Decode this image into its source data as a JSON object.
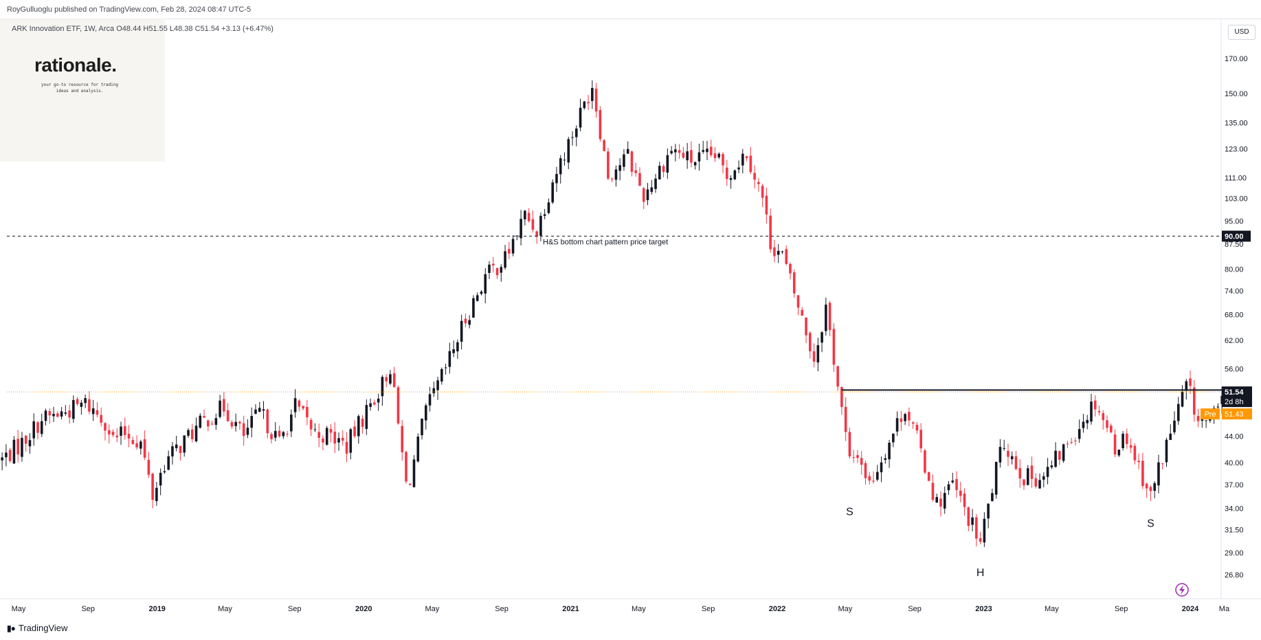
{
  "header": {
    "publish_line": "RoyGulluoglu published on TradingView.com, Feb 28, 2024 08:47 UTC-5"
  },
  "legend": {
    "text": "ARK Innovation ETF, 1W, Arca  O48.44  H51.55  L48.38  C51.54  +3.13 (+6.47%)"
  },
  "watermark": {
    "brand": "rationale.",
    "tagline": "your go-to resource for trading ideas and analysis."
  },
  "price_axis": {
    "currency": "USD"
  },
  "footer": {
    "logo_text": "TradingView",
    "logo_icon": "tradingview-logo-icon"
  },
  "colors": {
    "up": "#131722",
    "down": "#f23645",
    "price_line": "#ff9800",
    "pre_badge": "#ff9800",
    "accent": "#9c27b0"
  },
  "chart_data": {
    "type": "candlestick",
    "symbol": "ARK Innovation ETF",
    "interval": "1W",
    "exchange": "Arca",
    "scale": "log",
    "ylim": [
      25.2,
      185
    ],
    "yticks": [
      170.0,
      150.0,
      135.0,
      123.0,
      111.0,
      103.0,
      95.0,
      87.5,
      80.0,
      74.0,
      68.0,
      62.0,
      56.0,
      44.0,
      40.0,
      37.0,
      34.0,
      31.5,
      29.0,
      26.8
    ],
    "xticks": [
      "May",
      "Sep",
      "2019",
      "May",
      "Sep",
      "2020",
      "May",
      "Sep",
      "2021",
      "May",
      "Sep",
      "2022",
      "May",
      "Sep",
      "2023",
      "May",
      "Sep",
      "2024",
      "Ma"
    ],
    "xtick_dates": [
      "2018-05-01",
      "2018-09-01",
      "2019-01-01",
      "2019-05-01",
      "2019-09-01",
      "2020-01-01",
      "2020-05-01",
      "2020-09-01",
      "2021-01-01",
      "2021-05-01",
      "2021-09-01",
      "2022-01-01",
      "2022-05-01",
      "2022-09-01",
      "2023-01-01",
      "2023-05-01",
      "2023-09-01",
      "2024-01-01",
      "2024-03-01"
    ],
    "last_close": {
      "label": "51.54",
      "countdown": "2d 8h",
      "value": 51.54
    },
    "premarket": {
      "label": "Pre",
      "value_label": "51.43",
      "value": 51.43
    },
    "target_line": {
      "label": "H&S bottom chart pattern price target",
      "value": 90.0,
      "value_label": "90.00"
    },
    "neckline": {
      "value": 51.9,
      "start": "2022-04-25",
      "end": "2024-03-04"
    },
    "pattern_labels": [
      {
        "text": "S",
        "date": "2022-05-09",
        "price": 34.3
      },
      {
        "text": "H",
        "date": "2022-12-26",
        "price": 27.6
      },
      {
        "text": "S",
        "date": "2023-10-23",
        "price": 32.9
      }
    ],
    "anchors": [
      [
        "2018-04-02",
        40.5
      ],
      [
        "2018-05-07",
        43.0
      ],
      [
        "2018-06-11",
        46.8
      ],
      [
        "2018-07-09",
        47.5
      ],
      [
        "2018-08-06",
        48.6
      ],
      [
        "2018-08-27",
        49.5
      ],
      [
        "2018-10-01",
        46.5
      ],
      [
        "2018-10-15",
        43.5
      ],
      [
        "2018-11-05",
        44.5
      ],
      [
        "2018-12-03",
        43.0
      ],
      [
        "2018-12-24",
        35.5
      ],
      [
        "2019-01-14",
        40.0
      ],
      [
        "2019-02-25",
        44.0
      ],
      [
        "2019-04-01",
        47.0
      ],
      [
        "2019-04-29",
        48.8
      ],
      [
        "2019-06-03",
        44.0
      ],
      [
        "2019-07-01",
        48.0
      ],
      [
        "2019-08-05",
        43.0
      ],
      [
        "2019-09-02",
        49.0
      ],
      [
        "2019-10-07",
        44.5
      ],
      [
        "2019-11-04",
        44.0
      ],
      [
        "2019-12-02",
        42.5
      ],
      [
        "2019-12-30",
        47.0
      ],
      [
        "2020-02-03",
        53.0
      ],
      [
        "2020-02-17",
        56.5
      ],
      [
        "2020-03-16",
        37.0
      ],
      [
        "2020-03-23",
        38.0
      ],
      [
        "2020-04-20",
        48.0
      ],
      [
        "2020-05-25",
        56.0
      ],
      [
        "2020-06-29",
        67.0
      ],
      [
        "2020-08-03",
        78.0
      ],
      [
        "2020-09-07",
        83.0
      ],
      [
        "2020-10-12",
        97.0
      ],
      [
        "2020-11-02",
        92.0
      ],
      [
        "2020-11-30",
        110.0
      ],
      [
        "2021-01-04",
        130.0
      ],
      [
        "2021-02-08",
        155.0
      ],
      [
        "2021-02-22",
        132.0
      ],
      [
        "2021-03-08",
        112.0
      ],
      [
        "2021-04-12",
        120.0
      ],
      [
        "2021-05-10",
        104.0
      ],
      [
        "2021-06-28",
        123.0
      ],
      [
        "2021-08-02",
        118.0
      ],
      [
        "2021-09-13",
        120.0
      ],
      [
        "2021-10-04",
        112.0
      ],
      [
        "2021-11-08",
        122.0
      ],
      [
        "2021-12-06",
        103.0
      ],
      [
        "2021-12-20",
        88.0
      ],
      [
        "2022-01-10",
        84.0
      ],
      [
        "2022-02-07",
        70.0
      ],
      [
        "2022-03-07",
        58.0
      ],
      [
        "2022-03-28",
        70.0
      ],
      [
        "2022-05-09",
        40.0
      ],
      [
        "2022-05-23",
        41.5
      ],
      [
        "2022-06-13",
        37.0
      ],
      [
        "2022-08-15",
        49.0
      ],
      [
        "2022-09-05",
        43.5
      ],
      [
        "2022-10-10",
        34.5
      ],
      [
        "2022-11-07",
        37.0
      ],
      [
        "2022-12-26",
        30.0
      ],
      [
        "2023-01-23",
        39.0
      ],
      [
        "2023-02-06",
        43.0
      ],
      [
        "2023-03-13",
        38.0
      ],
      [
        "2023-04-17",
        38.0
      ],
      [
        "2023-05-22",
        42.0
      ],
      [
        "2023-07-17",
        50.0
      ],
      [
        "2023-08-21",
        42.5
      ],
      [
        "2023-09-11",
        44.0
      ],
      [
        "2023-10-23",
        35.5
      ],
      [
        "2023-11-13",
        41.0
      ],
      [
        "2023-12-11",
        48.5
      ],
      [
        "2023-12-26",
        53.0
      ],
      [
        "2024-01-15",
        46.5
      ],
      [
        "2024-02-05",
        46.0
      ],
      [
        "2024-02-19",
        48.5
      ],
      [
        "2024-02-26",
        51.54
      ]
    ]
  }
}
